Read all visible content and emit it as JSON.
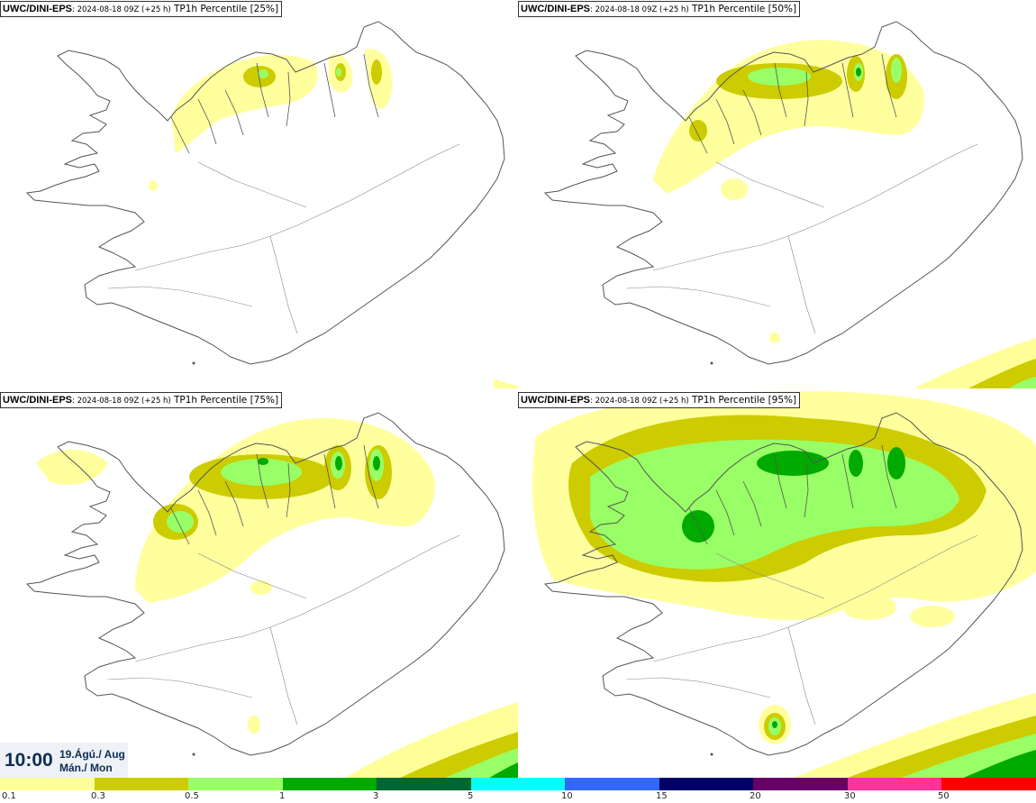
{
  "panels": [
    {
      "source": "UWC/DINI-EPS",
      "run": ": 2024-08-18 09Z (+25 h)",
      "field": " TP1h Percentile [25%]"
    },
    {
      "source": "UWC/DINI-EPS",
      "run": ": 2024-08-18 09Z (+25 h)",
      "field": " TP1h Percentile [50%]"
    },
    {
      "source": "UWC/DINI-EPS",
      "run": ": 2024-08-18 09Z (+25 h)",
      "field": " TP1h Percentile [75%]"
    },
    {
      "source": "UWC/DINI-EPS",
      "run": ": 2024-08-18 09Z (+25 h)",
      "field": " TP1h Percentile [95%]"
    }
  ],
  "valid_time": {
    "time": "10:00",
    "date_line1": "19.Ágú./ Aug",
    "date_line2": "Mán./ Mon"
  },
  "legend": {
    "labels": [
      "0.1",
      "0.3",
      "0.5",
      "1",
      "3",
      "5",
      "10",
      "15",
      "20",
      "30",
      "50"
    ],
    "colors": [
      "#ffff99",
      "#cccc00",
      "#99ff66",
      "#00aa00",
      "#006633",
      "#00ffff",
      "#3366ff",
      "#000066",
      "#660066",
      "#ff3399",
      "#ff0000"
    ]
  },
  "colors": {
    "land_outline": "#555555",
    "time_text": "#0d2d55"
  }
}
